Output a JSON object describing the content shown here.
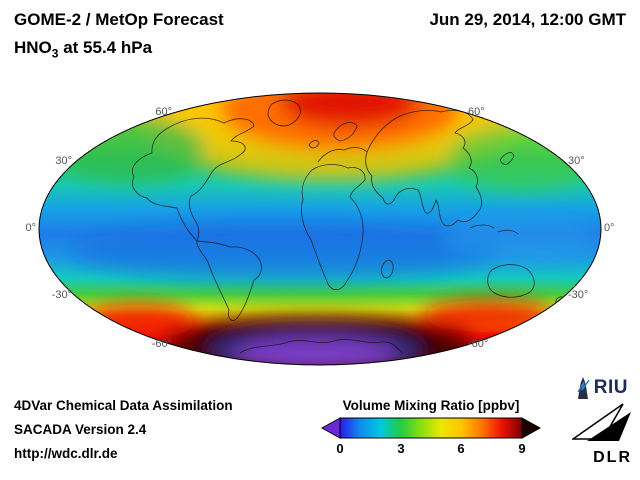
{
  "header": {
    "title_line1": "GOME-2 / MetOp Forecast",
    "species": "HNO",
    "species_sub": "3",
    "level_suffix": " at 55.4 hPa",
    "datetime": "Jun 29, 2014, 12:00 GMT"
  },
  "map": {
    "projection": "mollweide-world-map",
    "lat_labels": {
      "n60": "60°",
      "n30": "30°",
      "eq": "0°",
      "s30": "-30°",
      "s60": "-60°"
    }
  },
  "colorbar": {
    "title": "Volume Mixing Ratio [ppbv]",
    "unit": "ppbv",
    "ticks": [
      "0",
      "3",
      "6",
      "9"
    ],
    "tick_values": [
      0,
      3,
      6,
      9
    ],
    "range_min": 0,
    "range_max": 9,
    "gradient": [
      "#2a1ae8",
      "#0f8cf0",
      "#00c8e0",
      "#22cc44",
      "#8ade10",
      "#ece800",
      "#ffc400",
      "#ff7800",
      "#ee1200",
      "#7a0000"
    ],
    "under_color": "#6a28d8",
    "over_color": "#1c0000"
  },
  "footer": {
    "line1": "4DVar Chemical Data Assimilation",
    "line2": "SACADA Version 2.4",
    "line3": "http://wdc.dlr.de"
  },
  "logos": {
    "riu": "RIU",
    "dlr": "DLR"
  }
}
